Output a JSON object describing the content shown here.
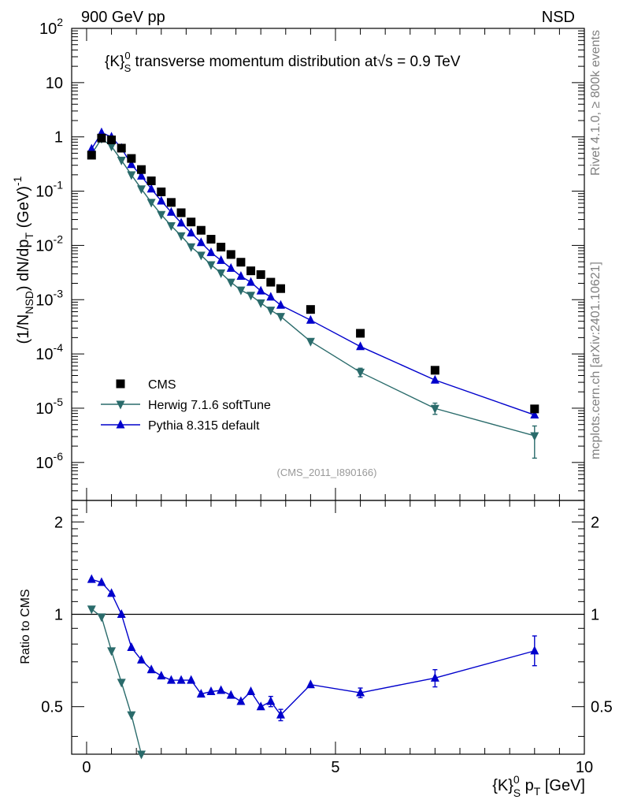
{
  "header": {
    "left": "900 GeV pp",
    "right": "NSD"
  },
  "side_labels": {
    "rivet": "Rivet 4.1.0, ≥ 800k events",
    "mcplots": "mcplots.cern.ch [arXiv:2401.10621]"
  },
  "chart_data": [
    {
      "type": "scatter",
      "title_parts": {
        "pre": "{K}",
        "sub": "S",
        "sup": "0",
        "mid": " transverse momentum distribution at",
        "sqrt": "√s",
        "post": " = 0.9 TeV"
      },
      "watermark": "(CMS_2011_I890166)",
      "ylabel": {
        "pre": "(1/N",
        "sub": "NSD",
        "mid": ") dN/dp",
        "sub2": "T",
        "post": " (GeV)",
        "sup": "-1"
      },
      "yscale": "log",
      "xlim": [
        -0.3,
        10.0
      ],
      "ylim_exp": [
        -6.7,
        2.0
      ],
      "ytick_labels": [
        {
          "base": "10",
          "exp": "-6",
          "v": -6
        },
        {
          "base": "10",
          "exp": "-5",
          "v": -5
        },
        {
          "base": "10",
          "exp": "-4",
          "v": -4
        },
        {
          "base": "10",
          "exp": "-3",
          "v": -3
        },
        {
          "base": "10",
          "exp": "-2",
          "v": -2
        },
        {
          "base": "10",
          "exp": "-1",
          "v": -1
        },
        {
          "base": "1",
          "exp": "",
          "v": 0
        },
        {
          "base": "10",
          "exp": "",
          "v": 1
        },
        {
          "base": "10",
          "exp": "2",
          "v": 2
        }
      ],
      "legend_position": "bottom-left",
      "series": [
        {
          "name": "CMS",
          "color": "#000000",
          "marker": "square",
          "x": [
            0.1,
            0.3,
            0.5,
            0.7,
            0.9,
            1.1,
            1.3,
            1.5,
            1.7,
            1.9,
            2.1,
            2.3,
            2.5,
            2.7,
            2.9,
            3.1,
            3.3,
            3.5,
            3.7,
            3.9,
            4.5,
            5.5,
            7.0,
            9.0
          ],
          "y": [
            0.46,
            0.95,
            0.88,
            0.62,
            0.4,
            0.25,
            0.155,
            0.097,
            0.062,
            0.04,
            0.027,
            0.019,
            0.013,
            0.0093,
            0.0068,
            0.0049,
            0.0034,
            0.0029,
            0.0021,
            0.0016,
            0.00066,
            0.00024,
            5e-05,
            9.7e-06
          ]
        },
        {
          "name": "Herwig 7.1.6 softTune",
          "color": "#2a6b6b",
          "marker": "triangle-down",
          "x": [
            0.1,
            0.3,
            0.5,
            0.7,
            0.9,
            1.1,
            1.3,
            1.5,
            1.7,
            1.9,
            2.1,
            2.3,
            2.5,
            2.7,
            2.9,
            3.1,
            3.3,
            3.5,
            3.7,
            3.9,
            4.5,
            5.5,
            7.0,
            9.0
          ],
          "y": [
            0.48,
            0.93,
            0.67,
            0.37,
            0.2,
            0.11,
            0.062,
            0.037,
            0.023,
            0.015,
            0.0094,
            0.0066,
            0.0044,
            0.0031,
            0.0021,
            0.0015,
            0.0012,
            0.00087,
            0.00064,
            0.00049,
            0.00017,
            4.6e-05,
            9.9e-06,
            3.1e-06
          ],
          "yerr_lo": [
            0,
            0,
            0,
            0,
            0,
            0,
            0,
            0,
            0,
            0,
            0,
            0,
            0,
            0,
            0,
            0,
            0,
            0,
            0,
            0,
            0,
            7.9e-06,
            2.2e-06,
            1.9e-06
          ],
          "yerr_hi": [
            0,
            0,
            0,
            0,
            0,
            0,
            0,
            0,
            0,
            0,
            0,
            0,
            0,
            0,
            0,
            0,
            0,
            0,
            0,
            0,
            0,
            8.5e-06,
            2.5e-06,
            1.6e-06
          ]
        },
        {
          "name": "Pythia 8.315 default",
          "color": "#0000cc",
          "marker": "triangle-up",
          "x": [
            0.1,
            0.3,
            0.5,
            0.7,
            0.9,
            1.1,
            1.3,
            1.5,
            1.7,
            1.9,
            2.1,
            2.3,
            2.5,
            2.7,
            2.9,
            3.1,
            3.3,
            3.5,
            3.7,
            3.9,
            4.5,
            5.5,
            7.0,
            9.0
          ],
          "y": [
            0.6,
            1.2,
            1.0,
            0.62,
            0.31,
            0.19,
            0.11,
            0.066,
            0.041,
            0.026,
            0.017,
            0.0113,
            0.0074,
            0.0053,
            0.0038,
            0.0027,
            0.0021,
            0.00145,
            0.00112,
            0.00079,
            0.00042,
            0.000137,
            3.3e-05,
            7.5e-06
          ]
        }
      ]
    },
    {
      "type": "scatter",
      "ylabel": "Ratio to CMS",
      "xlabel_parts": {
        "pre": "{K}",
        "sub": "S",
        "sup": "0",
        "post": " p",
        "sub2": "T",
        "tail": " [GeV]"
      },
      "xlim": [
        -0.3,
        10.0
      ],
      "ylim": [
        0.35,
        2.35
      ],
      "yscale": "log",
      "xticks": [
        0,
        5,
        10
      ],
      "xtick_labels": [
        "0",
        "5",
        "10"
      ],
      "yticks": [
        0.5,
        1,
        2
      ],
      "ytick_labels": [
        "0.5",
        "1",
        "2"
      ],
      "reference_line": 1.0,
      "series": [
        {
          "name": "Herwig 7.1.6 softTune",
          "color": "#2a6b6b",
          "marker": "triangle-down",
          "x": [
            0.1,
            0.3,
            0.5,
            0.7,
            0.9,
            1.1
          ],
          "y": [
            1.04,
            0.98,
            0.76,
            0.6,
            0.47,
            0.35
          ]
        },
        {
          "name": "Pythia 8.315 default",
          "color": "#0000cc",
          "marker": "triangle-up",
          "x": [
            0.1,
            0.3,
            0.5,
            0.7,
            0.9,
            1.1,
            1.3,
            1.5,
            1.7,
            1.9,
            2.1,
            2.3,
            2.5,
            2.7,
            2.9,
            3.1,
            3.3,
            3.5,
            3.7,
            3.9,
            4.5,
            5.5,
            7.0,
            9.0
          ],
          "y": [
            1.3,
            1.27,
            1.17,
            1.0,
            0.78,
            0.71,
            0.66,
            0.63,
            0.61,
            0.61,
            0.61,
            0.55,
            0.56,
            0.565,
            0.545,
            0.52,
            0.56,
            0.5,
            0.52,
            0.47,
            0.59,
            0.555,
            0.62,
            0.76
          ],
          "yerr_lo": [
            0,
            0,
            0,
            0,
            0,
            0,
            0,
            0,
            0,
            0,
            0,
            0,
            0,
            0,
            0,
            0,
            0,
            0,
            0.02,
            0.02,
            0,
            0.02,
            0.04,
            0.08
          ],
          "yerr_hi": [
            0,
            0,
            0,
            0,
            0,
            0,
            0,
            0,
            0,
            0,
            0,
            0,
            0,
            0,
            0,
            0,
            0,
            0,
            0.02,
            0.02,
            0,
            0.02,
            0.04,
            0.09
          ]
        }
      ]
    }
  ]
}
